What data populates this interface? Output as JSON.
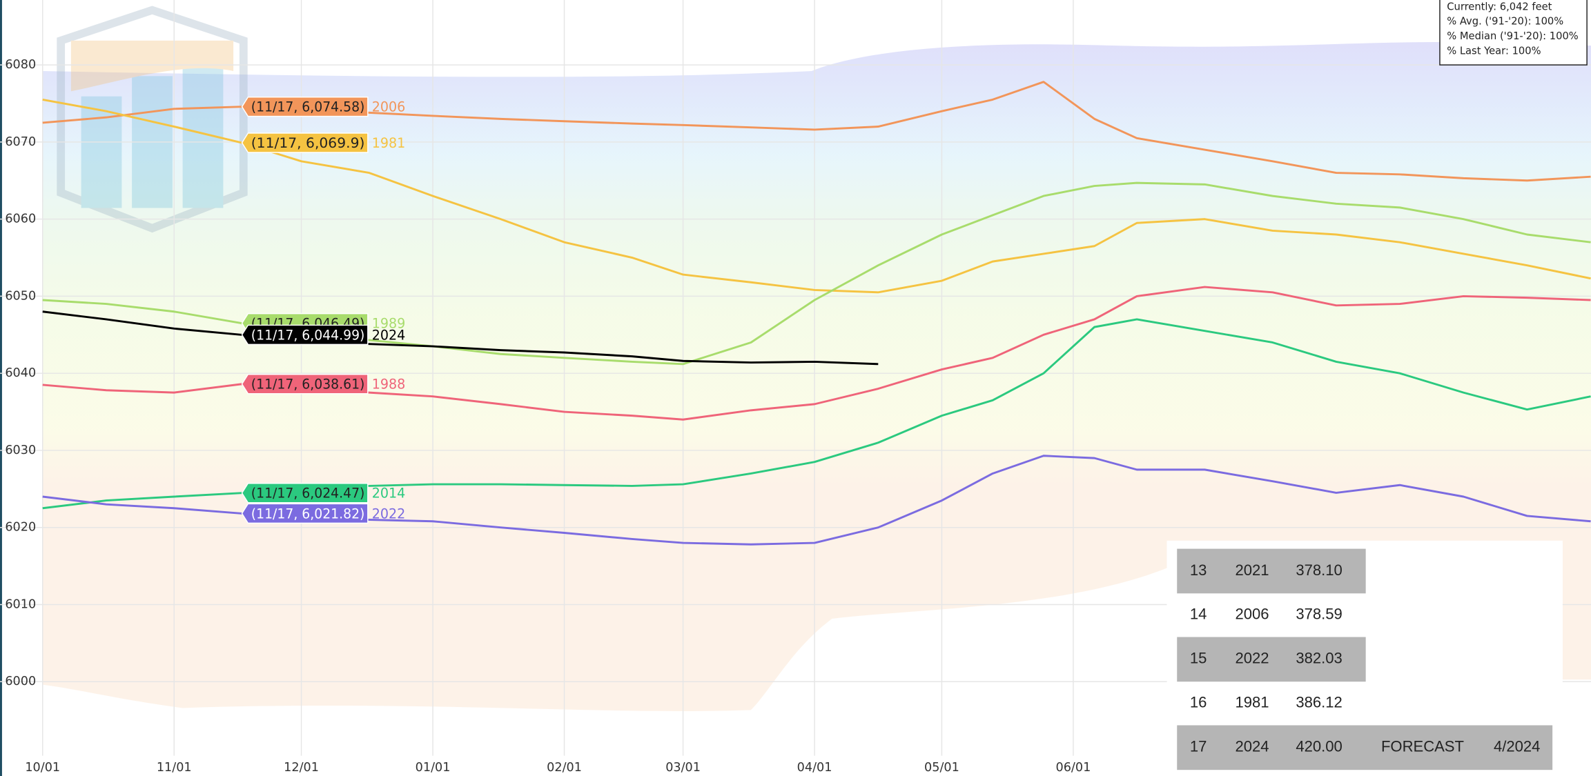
{
  "chart_data": {
    "type": "line",
    "x": [
      0,
      15,
      31,
      47,
      61,
      77,
      92,
      108,
      123,
      139,
      151,
      167,
      182,
      197,
      212,
      224,
      236,
      248,
      258,
      274,
      290,
      305,
      320,
      335,
      350,
      365
    ],
    "xlim": [
      0,
      366
    ],
    "xticks": [
      {
        "value": 0,
        "label": "10/01"
      },
      {
        "value": 31,
        "label": "11/01"
      },
      {
        "value": 61,
        "label": "12/01"
      },
      {
        "value": 92,
        "label": "01/01"
      },
      {
        "value": 123,
        "label": "02/01"
      },
      {
        "value": 151,
        "label": "03/01"
      },
      {
        "value": 182,
        "label": "04/01"
      },
      {
        "value": 212,
        "label": "05/01"
      },
      {
        "value": 243,
        "label": "06/01"
      }
    ],
    "ylim": [
      5991,
      6088
    ],
    "yticks": [
      6000,
      6010,
      6020,
      6030,
      6040,
      6050,
      6060,
      6070,
      6080
    ],
    "grid": true,
    "series": [
      {
        "name": "2006",
        "color": "#f2955a",
        "hover_label": "(11/17, 6,074.58)",
        "values": [
          6072.5,
          6073.2,
          6074.3,
          6074.58,
          6074.2,
          6073.8,
          6073.4,
          6073,
          6072.7,
          6072.4,
          6072.2,
          6071.9,
          6071.6,
          6072,
          6074,
          6075.5,
          6077.8,
          6073,
          6070.5,
          6069,
          6067.5,
          6066,
          6065.8,
          6065.3,
          6065,
          6065.5
        ]
      },
      {
        "name": "1981",
        "color": "#f5c342",
        "hover_label": "(11/17, 6,069.9)",
        "values": [
          6075.5,
          6074,
          6072,
          6069.9,
          6067.5,
          6066,
          6063,
          6060,
          6057,
          6055,
          6052.8,
          6051.8,
          6050.8,
          6050.5,
          6052,
          6054.5,
          6055.5,
          6056.5,
          6059.5,
          6060,
          6058.5,
          6058,
          6057,
          6055.5,
          6054,
          6052.3
        ]
      },
      {
        "name": "1989",
        "color": "#a8dc6c",
        "hover_label": "(11/17, 6,046.49)",
        "values": [
          6049.5,
          6049,
          6048,
          6046.49,
          6045,
          6044.3,
          6043.5,
          6042.5,
          6042,
          6041.5,
          6041.2,
          6044,
          6049.5,
          6054,
          6058,
          6060.5,
          6063,
          6064.3,
          6064.7,
          6064.5,
          6063,
          6062,
          6061.5,
          6060,
          6058,
          6057
        ]
      },
      {
        "name": "2024",
        "color": "#000000",
        "hover_label": "(11/17, 6,044.99)",
        "values": [
          6048,
          6047,
          6045.8,
          6044.99,
          6044.2,
          6043.8,
          6043.5,
          6043,
          6042.7,
          6042.2,
          6041.6,
          6041.4,
          6041.5,
          6041.2,
          null,
          null,
          null,
          null,
          null,
          null,
          null,
          null,
          null,
          null,
          null,
          null
        ]
      },
      {
        "name": "1988",
        "color": "#ef6479",
        "hover_label": "(11/17, 6,038.61)",
        "values": [
          6038.5,
          6037.8,
          6037.5,
          6038.61,
          6038,
          6037.5,
          6037,
          6036,
          6035,
          6034.5,
          6034,
          6035.2,
          6036,
          6038,
          6040.5,
          6042,
          6045,
          6047,
          6050,
          6051.2,
          6050.5,
          6048.8,
          6049,
          6050,
          6049.8,
          6049.5
        ]
      },
      {
        "name": "2014",
        "color": "#2bc97f",
        "hover_label": "(11/17, 6,024.47)",
        "values": [
          6022.5,
          6023.5,
          6024,
          6024.47,
          6025,
          6025.4,
          6025.6,
          6025.6,
          6025.5,
          6025.4,
          6025.6,
          6027,
          6028.5,
          6031,
          6034.5,
          6036.5,
          6040,
          6046,
          6047,
          6045.5,
          6044,
          6041.5,
          6040,
          6037.5,
          6035.3,
          6037
        ]
      },
      {
        "name": "2022",
        "color": "#7b6be0",
        "hover_label": "(11/17, 6,021.82)",
        "values": [
          6024,
          6023,
          6022.5,
          6021.82,
          6021.4,
          6021,
          6020.8,
          6020,
          6019.3,
          6018.5,
          6018,
          6017.8,
          6018,
          6020,
          6023.5,
          6027,
          6029.3,
          6029,
          6027.5,
          6027.5,
          6026,
          6024.5,
          6025.5,
          6024,
          6021.5,
          6020.8
        ]
      }
    ]
  },
  "info_box": [
    "Currently: 6,042 feet",
    "% Avg. ('91-'20): 100%",
    "% Median ('91-'20): 100%",
    "% Last Year: 100%"
  ],
  "table": {
    "rows": [
      [
        "13",
        "2021",
        "378.10"
      ],
      [
        "14",
        "2006",
        "378.59"
      ],
      [
        "15",
        "2022",
        "382.03"
      ],
      [
        "16",
        "1981",
        "386.12"
      ],
      [
        "17",
        "2024",
        "420.00",
        "FORECAST",
        "4/2024"
      ]
    ]
  }
}
